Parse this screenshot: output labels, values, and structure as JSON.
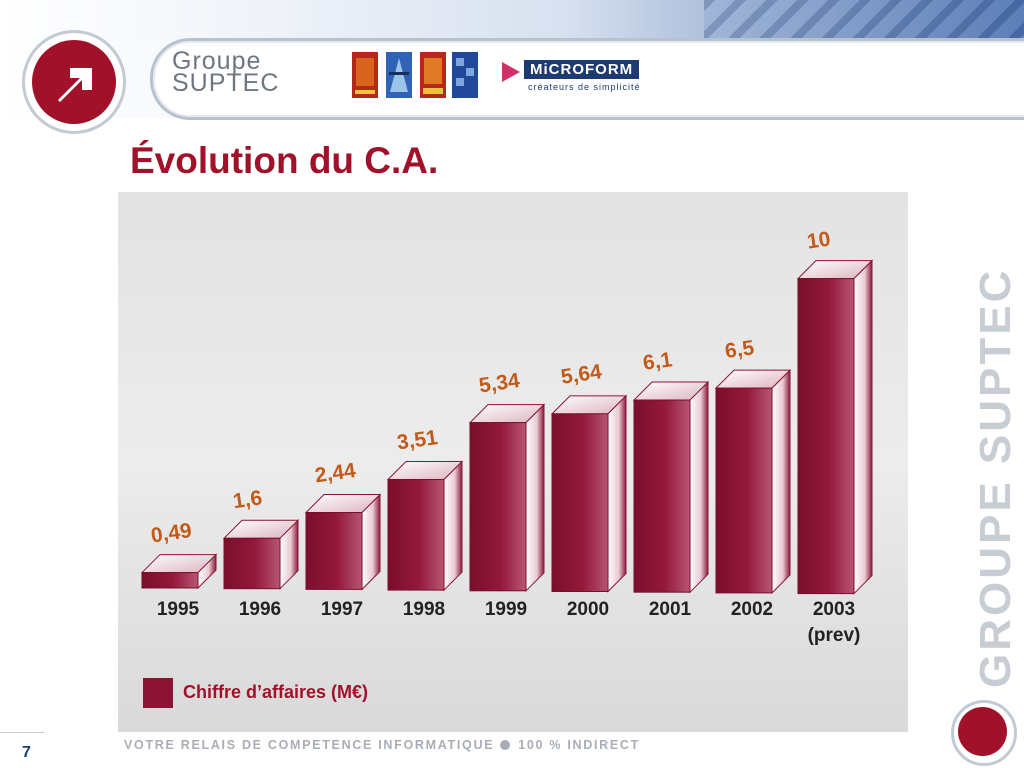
{
  "header": {
    "brand_line1": "Groupe",
    "brand_line2": "SUPTEC",
    "partner_name": "MiCROFORM",
    "partner_tagline": "créateurs de simplicité"
  },
  "slide": {
    "title": "Évolution du C.A.",
    "page_number": "7",
    "vertical_brand": "GROUPE SUPTEC",
    "tagline_part1": "VOTRE RELAIS DE COMPETENCE INFORMATIQUE",
    "tagline_part2": "100 % INDIRECT"
  },
  "colors": {
    "accent": "#a1122a",
    "bar_front": "#8b1434",
    "navy": "#1d3a72"
  },
  "icons": {
    "logo": "arrow-up-right-icon",
    "footer_dot": "bullet-icon"
  },
  "chart_data": {
    "type": "bar",
    "categories": [
      "1995",
      "1996",
      "1997",
      "1998",
      "1999",
      "2000",
      "2001",
      "2002",
      "2003"
    ],
    "category_sublabels": [
      "",
      "",
      "",
      "",
      "",
      "",
      "",
      "",
      "(prev)"
    ],
    "series": [
      {
        "name": "Chiffre d’affaires (M€)",
        "values": [
          0.49,
          1.6,
          2.44,
          3.51,
          5.34,
          5.64,
          6.1,
          6.5,
          10
        ]
      }
    ],
    "value_labels": [
      "0,49",
      "1,6",
      "2,44",
      "3,51",
      "5,34",
      "5,64",
      "6,1",
      "6,5",
      "10"
    ],
    "title": "Évolution du C.A.",
    "xlabel": "",
    "ylabel": "",
    "ylim": [
      0,
      10
    ],
    "grid": false,
    "legend": "bottom-left",
    "style": "3d-bars"
  }
}
